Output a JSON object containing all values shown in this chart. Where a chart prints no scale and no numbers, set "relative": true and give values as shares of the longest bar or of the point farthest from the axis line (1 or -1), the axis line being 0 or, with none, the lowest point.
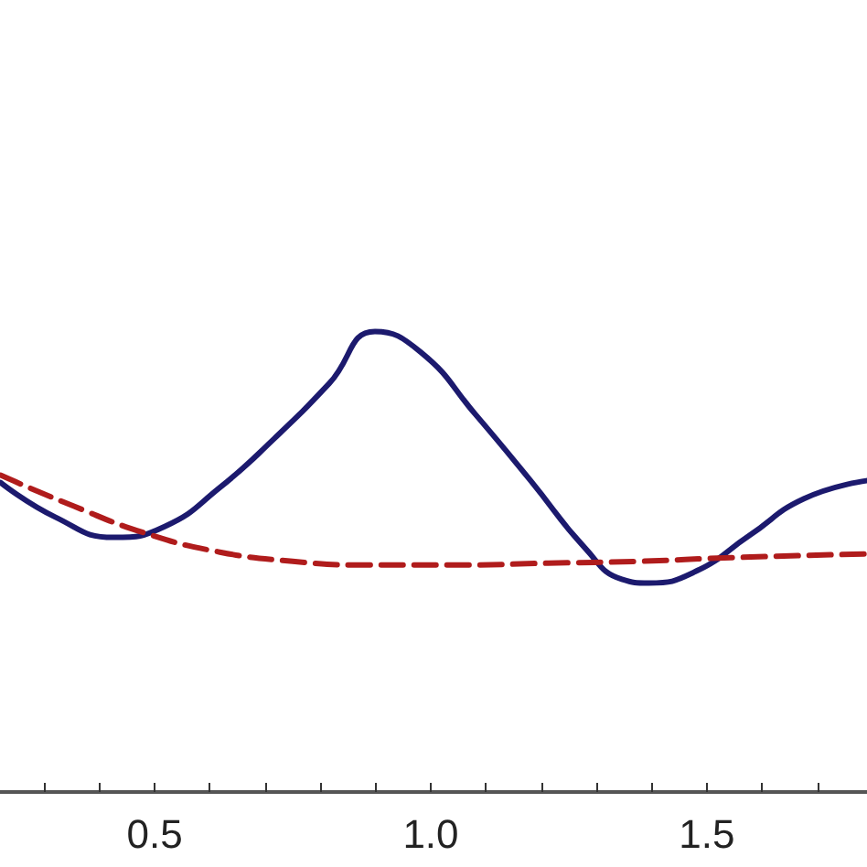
{
  "chart_data": {
    "type": "line",
    "relative": true,
    "xlim": [
      0.22,
      1.79
    ],
    "xticks": [
      {
        "value": 0.3,
        "label": null
      },
      {
        "value": 0.4,
        "label": null
      },
      0.5,
      {
        "value": 0.6,
        "label": null
      },
      {
        "value": 0.7,
        "label": null
      },
      {
        "value": 0.8,
        "label": null
      },
      {
        "value": 0.9,
        "label": null
      },
      {
        "value": 1.0,
        "label": "1.0"
      },
      {
        "value": 1.1,
        "label": null
      },
      {
        "value": 1.2,
        "label": null
      },
      {
        "value": 1.3,
        "label": null
      },
      {
        "value": 1.4,
        "label": null
      },
      1.5,
      {
        "value": 1.6,
        "label": null
      },
      {
        "value": 1.7,
        "label": null
      }
    ],
    "tick_labels": "x",
    "grid": false,
    "series": [
      {
        "color": "#1c1a6e",
        "line_style": "solid",
        "x": [
          0.221,
          0.32,
          0.426,
          0.519,
          0.618,
          0.717,
          0.816,
          0.899,
          0.982,
          1.081,
          1.181,
          1.28,
          1.346,
          1.395,
          1.478,
          1.577,
          1.676,
          1.789
        ],
        "values": [
          0.672,
          0.597,
          0.553,
          0.577,
          0.661,
          0.768,
          0.887,
          1.0,
          0.955,
          0.82,
          0.676,
          0.529,
          0.462,
          0.454,
          0.478,
          0.557,
          0.637,
          0.676
        ]
      },
      {
        "color": "#b01c1c",
        "line_style": "dashed",
        "x": [
          0.221,
          0.353,
          0.486,
          0.618,
          0.75,
          0.883,
          1.048,
          1.213,
          1.378,
          1.544,
          1.789
        ],
        "values": [
          0.688,
          0.621,
          0.561,
          0.521,
          0.501,
          0.493,
          0.493,
          0.497,
          0.501,
          0.509,
          0.517
        ]
      }
    ]
  }
}
